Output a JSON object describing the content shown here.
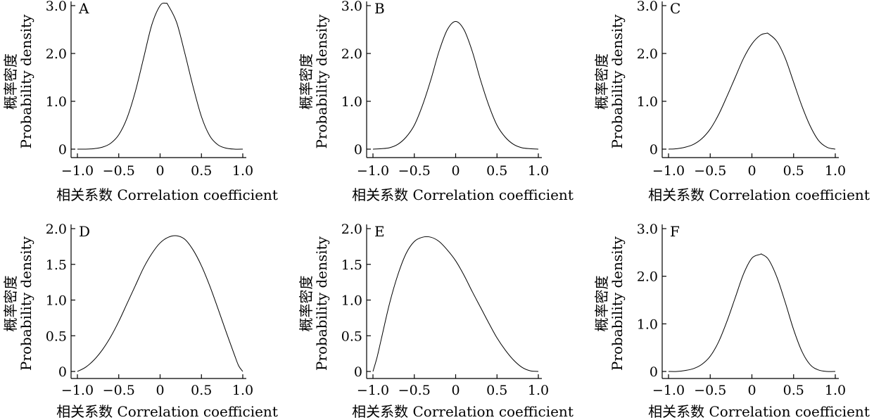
{
  "chart_data": [
    {
      "type": "line",
      "panel_label": "A",
      "xlabel": "相关系数 Correlation coefficient",
      "ylabel_zh": "概率密度",
      "ylabel_en": "Probability density",
      "xlim": [
        -1.0,
        1.0
      ],
      "ylim": [
        0,
        3.0
      ],
      "xticks": [
        -1.0,
        -0.5,
        0,
        0.5,
        1.0
      ],
      "xtick_labels": [
        "−1.0",
        "−0.5",
        "0",
        "0.5",
        "1.0"
      ],
      "yticks": [
        0,
        1.0,
        2.0,
        3.0
      ],
      "ytick_labels": [
        "0",
        "1.0",
        "2.0",
        "3.0"
      ],
      "series": [
        {
          "x": [
            -1.0,
            -0.9,
            -0.8,
            -0.7,
            -0.6,
            -0.5,
            -0.4,
            -0.3,
            -0.2,
            -0.1,
            0,
            0.07,
            0.1,
            0.2,
            0.3,
            0.4,
            0.5,
            0.6,
            0.7,
            0.8,
            0.9,
            1.0
          ],
          "y": [
            0.0,
            0.0,
            0.01,
            0.04,
            0.12,
            0.3,
            0.65,
            1.2,
            1.9,
            2.6,
            3.0,
            3.05,
            3.0,
            2.65,
            2.0,
            1.3,
            0.68,
            0.28,
            0.09,
            0.02,
            0.0,
            0.0
          ]
        }
      ]
    },
    {
      "type": "line",
      "panel_label": "B",
      "xlabel": "相关系数 Correlation coefficient",
      "ylabel_zh": "概率密度",
      "ylabel_en": "Probability density",
      "xlim": [
        -1.0,
        1.0
      ],
      "ylim": [
        0,
        3.0
      ],
      "xticks": [
        -1.0,
        -0.5,
        0,
        0.5,
        1.0
      ],
      "xtick_labels": [
        "−1.0",
        "−0.5",
        "0",
        "0.5",
        "1.0"
      ],
      "yticks": [
        0,
        1.0,
        2.0,
        3.0
      ],
      "ytick_labels": [
        "0",
        "1.0",
        "2.0",
        "3.0"
      ],
      "series": [
        {
          "x": [
            -1.0,
            -0.9,
            -0.8,
            -0.7,
            -0.6,
            -0.5,
            -0.4,
            -0.3,
            -0.2,
            -0.1,
            0,
            0.1,
            0.2,
            0.3,
            0.4,
            0.5,
            0.6,
            0.7,
            0.8,
            0.9,
            1.0
          ],
          "y": [
            0.0,
            0.01,
            0.03,
            0.1,
            0.25,
            0.5,
            0.92,
            1.45,
            2.05,
            2.5,
            2.67,
            2.5,
            2.05,
            1.45,
            0.92,
            0.5,
            0.25,
            0.1,
            0.03,
            0.01,
            0.0
          ]
        }
      ]
    },
    {
      "type": "line",
      "panel_label": "C",
      "xlabel": "相关系数 Correlation coefficient",
      "ylabel_zh": "概率密度",
      "ylabel_en": "Probability density",
      "xlim": [
        -1.0,
        1.0
      ],
      "ylim": [
        0,
        3.0
      ],
      "xticks": [
        -1.0,
        -0.5,
        0,
        0.5,
        1.0
      ],
      "xtick_labels": [
        "−1.0",
        "−0.5",
        "0",
        "0.5",
        "1.0"
      ],
      "yticks": [
        0,
        1.0,
        2.0,
        3.0
      ],
      "ytick_labels": [
        "0",
        "1.0",
        "2.0",
        "3.0"
      ],
      "series": [
        {
          "x": [
            -1.0,
            -0.9,
            -0.8,
            -0.7,
            -0.6,
            -0.5,
            -0.4,
            -0.3,
            -0.2,
            -0.1,
            0,
            0.1,
            0.17,
            0.2,
            0.3,
            0.4,
            0.5,
            0.6,
            0.7,
            0.8,
            0.9,
            1.0
          ],
          "y": [
            0.0,
            0.01,
            0.04,
            0.1,
            0.22,
            0.42,
            0.72,
            1.1,
            1.5,
            1.9,
            2.2,
            2.38,
            2.42,
            2.41,
            2.25,
            1.9,
            1.4,
            0.9,
            0.48,
            0.18,
            0.04,
            0.0
          ]
        }
      ]
    },
    {
      "type": "line",
      "panel_label": "D",
      "xlabel": "相关系数 Correlation coefficient",
      "ylabel_zh": "概率密度",
      "ylabel_en": "Probability density",
      "xlim": [
        -1.0,
        1.0
      ],
      "ylim": [
        0,
        2.0
      ],
      "xticks": [
        -1.0,
        -0.5,
        0,
        0.5,
        1.0
      ],
      "xtick_labels": [
        "−1.0",
        "−0.5",
        "0",
        "0.5",
        "1.0"
      ],
      "yticks": [
        0,
        0.5,
        1.0,
        1.5,
        2.0
      ],
      "ytick_labels": [
        "0",
        "0.5",
        "1.0",
        "1.5",
        "2.0"
      ],
      "series": [
        {
          "x": [
            -1.0,
            -0.9,
            -0.8,
            -0.7,
            -0.6,
            -0.5,
            -0.4,
            -0.3,
            -0.2,
            -0.1,
            0,
            0.1,
            0.2,
            0.3,
            0.4,
            0.5,
            0.6,
            0.7,
            0.8,
            0.9,
            0.95,
            1.0
          ],
          "y": [
            0.0,
            0.06,
            0.16,
            0.3,
            0.48,
            0.7,
            0.95,
            1.2,
            1.45,
            1.65,
            1.8,
            1.88,
            1.9,
            1.85,
            1.7,
            1.48,
            1.2,
            0.88,
            0.55,
            0.23,
            0.08,
            0.0
          ]
        }
      ]
    },
    {
      "type": "line",
      "panel_label": "E",
      "xlabel": "相关系数 Correlation coefficient",
      "ylabel_zh": "概率密度",
      "ylabel_en": "Probability density",
      "xlim": [
        -1.0,
        1.0
      ],
      "ylim": [
        0,
        2.0
      ],
      "xticks": [
        -1.0,
        -0.5,
        0,
        0.5,
        1.0
      ],
      "xtick_labels": [
        "−1.0",
        "−0.5",
        "0",
        "0.5",
        "1.0"
      ],
      "yticks": [
        0,
        0.5,
        1.0,
        1.5,
        2.0
      ],
      "ytick_labels": [
        "0",
        "0.5",
        "1.0",
        "1.5",
        "2.0"
      ],
      "series": [
        {
          "x": [
            -1.0,
            -0.95,
            -0.9,
            -0.8,
            -0.7,
            -0.6,
            -0.5,
            -0.4,
            -0.3,
            -0.2,
            -0.1,
            0,
            0.1,
            0.2,
            0.3,
            0.4,
            0.5,
            0.6,
            0.7,
            0.8,
            0.9,
            1.0
          ],
          "y": [
            0.0,
            0.2,
            0.45,
            0.95,
            1.35,
            1.65,
            1.82,
            1.88,
            1.88,
            1.82,
            1.7,
            1.55,
            1.35,
            1.12,
            0.9,
            0.68,
            0.47,
            0.3,
            0.16,
            0.06,
            0.01,
            0.0
          ]
        }
      ]
    },
    {
      "type": "line",
      "panel_label": "F",
      "xlabel": "相关系数 Correlation coefficient",
      "ylabel_zh": "概率密度",
      "ylabel_en": "Probability density",
      "xlim": [
        -1.0,
        1.0
      ],
      "ylim": [
        0,
        3.0
      ],
      "xticks": [
        -1.0,
        -0.5,
        0,
        0.5,
        1.0
      ],
      "xtick_labels": [
        "−1.0",
        "−0.5",
        "0",
        "0.5",
        "1.0"
      ],
      "yticks": [
        0,
        1.0,
        2.0,
        3.0
      ],
      "ytick_labels": [
        "0",
        "1.0",
        "2.0",
        "3.0"
      ],
      "series": [
        {
          "x": [
            -1.0,
            -0.9,
            -0.8,
            -0.7,
            -0.6,
            -0.5,
            -0.4,
            -0.3,
            -0.2,
            -0.1,
            0,
            0.1,
            0.12,
            0.2,
            0.3,
            0.4,
            0.5,
            0.6,
            0.7,
            0.8,
            0.9,
            1.0
          ],
          "y": [
            0.0,
            0.0,
            0.02,
            0.06,
            0.15,
            0.32,
            0.62,
            1.05,
            1.55,
            2.05,
            2.38,
            2.46,
            2.46,
            2.35,
            1.98,
            1.45,
            0.88,
            0.42,
            0.14,
            0.03,
            0.0,
            0.0
          ]
        }
      ]
    }
  ]
}
